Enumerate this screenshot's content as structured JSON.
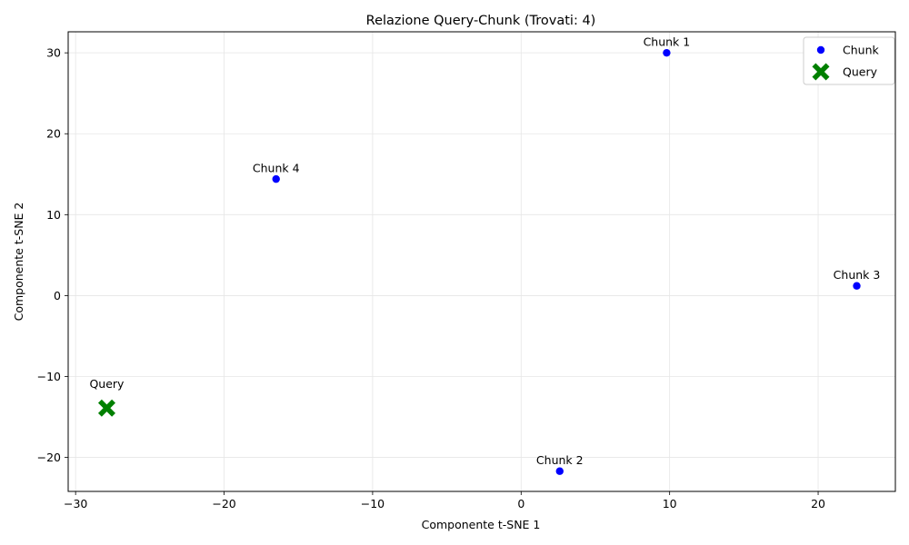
{
  "chart_data": {
    "type": "scatter",
    "title": "Relazione Query-Chunk (Trovati: 4)",
    "xlabel": "Componente t-SNE 1",
    "ylabel": "Componente t-SNE 2",
    "xlim": [
      -30.5,
      25.2
    ],
    "ylim": [
      -24.2,
      32.6
    ],
    "xticks": [
      -30,
      -20,
      -10,
      0,
      10,
      20
    ],
    "yticks": [
      -20,
      -10,
      0,
      10,
      20,
      30
    ],
    "xtick_labels": [
      "−30",
      "−20",
      "−10",
      "0",
      "10",
      "20"
    ],
    "ytick_labels": [
      "−20",
      "−10",
      "0",
      "10",
      "20",
      "30"
    ],
    "grid": true,
    "legend_position": "top-right",
    "series": [
      {
        "name": "Chunk",
        "marker": "circle",
        "color": "#0000ff",
        "points": [
          {
            "label": "Chunk 1",
            "x": 9.8,
            "y": 30.0
          },
          {
            "label": "Chunk 2",
            "x": 2.6,
            "y": -21.7
          },
          {
            "label": "Chunk 3",
            "x": 22.6,
            "y": 1.2
          },
          {
            "label": "Chunk 4",
            "x": -16.5,
            "y": 14.4
          }
        ]
      },
      {
        "name": "Query",
        "marker": "x-filled",
        "color": "#008000",
        "label_color": "#0000ff",
        "points": [
          {
            "label": "Query",
            "x": -27.9,
            "y": -13.9
          }
        ]
      }
    ]
  }
}
